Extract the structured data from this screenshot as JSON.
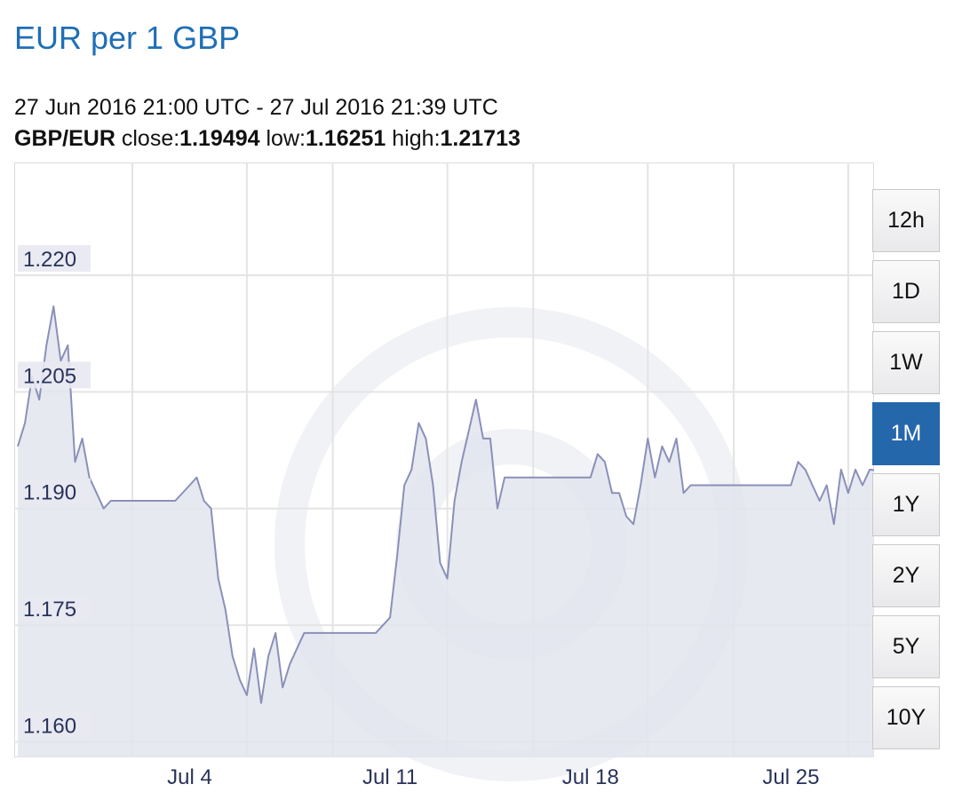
{
  "header": {
    "title": "EUR per 1 GBP",
    "date_range": "27 Jun 2016 21:00 UTC - 27 Jul 2016 21:39 UTC",
    "pair": "GBP/EUR",
    "close_label": "close:",
    "close_value": "1.19494",
    "low_label": "low:",
    "low_value": "1.16251",
    "high_label": "high:",
    "high_value": "1.21713"
  },
  "range_buttons": [
    "12h",
    "1D",
    "1W",
    "1M",
    "1Y",
    "2Y",
    "5Y",
    "10Y"
  ],
  "active_range": "1M",
  "colors": {
    "title": "#1f6fb5",
    "line": "#8a90b8",
    "fill": "#e3e5ef",
    "active_button": "#2567ab",
    "grid": "#e0e0e0"
  },
  "chart_data": {
    "type": "area",
    "title": "EUR per 1 GBP",
    "xlabel": "",
    "ylabel": "",
    "x_tick_labels": [
      "Jul 4",
      "Jul 11",
      "Jul 18",
      "Jul 25"
    ],
    "y_tick_labels": [
      "1.220",
      "1.205",
      "1.190",
      "1.175",
      "1.160"
    ],
    "y_ticks": [
      1.22,
      1.205,
      1.19,
      1.175,
      1.16
    ],
    "ylim": [
      1.158,
      1.2345
    ],
    "xlim": [
      "2016-06-27T21:00",
      "2016-07-27T21:39"
    ],
    "grid": true,
    "series": [
      {
        "x": [
          "2016-06-28T00:00",
          "2016-06-28T06:00",
          "2016-06-28T12:00",
          "2016-06-28T18:00",
          "2016-06-29T00:00",
          "2016-06-29T06:00",
          "2016-06-29T12:00",
          "2016-06-29T18:00",
          "2016-06-30T00:00",
          "2016-06-30T06:00",
          "2016-06-30T12:00",
          "2016-06-30T18:00",
          "2016-07-01T00:00",
          "2016-07-01T06:00",
          "2016-07-01T12:00",
          "2016-07-01T18:00",
          "2016-07-02T12:00",
          "2016-07-03T12:00",
          "2016-07-04T00:00",
          "2016-07-04T06:00",
          "2016-07-04T12:00",
          "2016-07-04T18:00",
          "2016-07-05T00:00",
          "2016-07-05T06:00",
          "2016-07-05T12:00",
          "2016-07-05T18:00",
          "2016-07-06T00:00",
          "2016-07-06T06:00",
          "2016-07-06T12:00",
          "2016-07-06T18:00",
          "2016-07-07T00:00",
          "2016-07-07T06:00",
          "2016-07-07T12:00",
          "2016-07-07T18:00",
          "2016-07-08T00:00",
          "2016-07-08T06:00",
          "2016-07-08T12:00",
          "2016-07-08T18:00",
          "2016-07-09T12:00",
          "2016-07-10T12:00",
          "2016-07-11T00:00",
          "2016-07-11T06:00",
          "2016-07-11T12:00",
          "2016-07-11T18:00",
          "2016-07-12T00:00",
          "2016-07-12T06:00",
          "2016-07-12T12:00",
          "2016-07-12T18:00",
          "2016-07-13T00:00",
          "2016-07-13T06:00",
          "2016-07-13T12:00",
          "2016-07-13T18:00",
          "2016-07-14T00:00",
          "2016-07-14T06:00",
          "2016-07-14T12:00",
          "2016-07-14T18:00",
          "2016-07-15T00:00",
          "2016-07-15T06:00",
          "2016-07-15T12:00",
          "2016-07-15T18:00",
          "2016-07-16T12:00",
          "2016-07-17T12:00",
          "2016-07-18T00:00",
          "2016-07-18T06:00",
          "2016-07-18T12:00",
          "2016-07-18T18:00",
          "2016-07-19T00:00",
          "2016-07-19T06:00",
          "2016-07-19T12:00",
          "2016-07-19T18:00",
          "2016-07-20T00:00",
          "2016-07-20T06:00",
          "2016-07-20T12:00",
          "2016-07-20T18:00",
          "2016-07-21T00:00",
          "2016-07-21T06:00",
          "2016-07-21T12:00",
          "2016-07-21T18:00",
          "2016-07-22T00:00",
          "2016-07-22T06:00",
          "2016-07-22T12:00",
          "2016-07-22T18:00",
          "2016-07-23T12:00",
          "2016-07-24T12:00",
          "2016-07-25T00:00",
          "2016-07-25T06:00",
          "2016-07-25T12:00",
          "2016-07-25T18:00",
          "2016-07-26T00:00",
          "2016-07-26T06:00",
          "2016-07-26T12:00",
          "2016-07-26T18:00",
          "2016-07-27T00:00",
          "2016-07-27T06:00",
          "2016-07-27T12:00",
          "2016-07-27T18:00",
          "2016-07-27T21:39"
        ],
        "values": [
          1.198,
          1.201,
          1.207,
          1.204,
          1.211,
          1.216,
          1.209,
          1.211,
          1.196,
          1.199,
          1.194,
          1.192,
          1.19,
          1.191,
          1.191,
          1.191,
          1.191,
          1.191,
          1.193,
          1.194,
          1.191,
          1.19,
          1.181,
          1.177,
          1.171,
          1.168,
          1.166,
          1.172,
          1.165,
          1.171,
          1.174,
          1.167,
          1.17,
          1.172,
          1.174,
          1.174,
          1.174,
          1.174,
          1.174,
          1.174,
          1.176,
          1.184,
          1.193,
          1.195,
          1.201,
          1.199,
          1.193,
          1.183,
          1.181,
          1.191,
          1.196,
          1.2,
          1.204,
          1.199,
          1.199,
          1.19,
          1.194,
          1.194,
          1.194,
          1.194,
          1.194,
          1.194,
          1.194,
          1.197,
          1.196,
          1.192,
          1.192,
          1.189,
          1.188,
          1.193,
          1.199,
          1.194,
          1.198,
          1.196,
          1.199,
          1.192,
          1.193,
          1.193,
          1.193,
          1.193,
          1.193,
          1.193,
          1.193,
          1.193,
          1.193,
          1.196,
          1.195,
          1.193,
          1.191,
          1.193,
          1.188,
          1.195,
          1.192,
          1.195,
          1.193,
          1.195,
          1.19494
        ]
      }
    ]
  }
}
